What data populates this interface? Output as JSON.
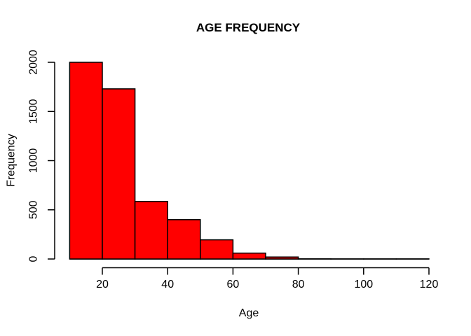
{
  "chart_data": {
    "type": "bar",
    "subtype": "histogram",
    "title": "AGE FREQUENCY",
    "xlabel": "Age",
    "ylabel": "Frequency",
    "bin_edges": [
      10,
      20,
      30,
      40,
      50,
      60,
      70,
      80,
      90,
      100,
      110,
      120
    ],
    "counts": [
      2000,
      1730,
      585,
      400,
      195,
      60,
      20,
      2,
      1,
      1,
      1
    ],
    "x_ticks": [
      20,
      40,
      60,
      80,
      100,
      120
    ],
    "y_ticks": [
      0,
      500,
      1000,
      1500,
      2000
    ],
    "xlim": [
      10,
      120
    ],
    "ylim": [
      0,
      2000
    ],
    "grid": false,
    "legend": false,
    "colors": {
      "bar_fill": "#FF0000",
      "bar_border": "#000000",
      "axis": "#000000",
      "text": "#000000",
      "background": "#FFFFFF"
    }
  }
}
